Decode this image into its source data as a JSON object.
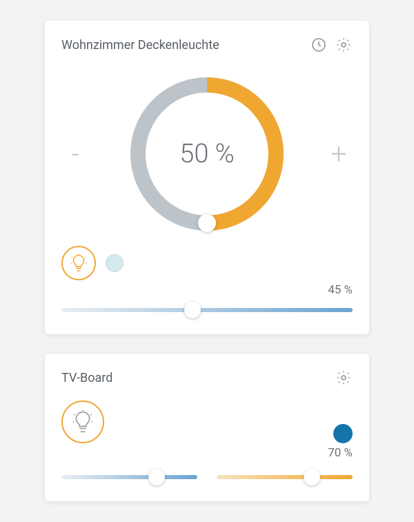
{
  "page": {
    "background_color": "#f2f3f4"
  },
  "card1": {
    "title": "Wohnzimmer Deckenleuchte",
    "dial": {
      "percent": 50,
      "label": "50 %",
      "track_color": "#bcc3c9",
      "fill_color": "#f0a732",
      "stroke_width": 22,
      "radius": 100,
      "handle_color": "#ffffff"
    },
    "minus_label": "-",
    "plus_label": "+",
    "mode": {
      "bulb_border": "#f0a732",
      "color_dot": "#d4e9ec"
    },
    "slider": {
      "percent": 45,
      "label": "45 %",
      "gradient": [
        "#e9eef3",
        "#6aa3d0"
      ]
    }
  },
  "card2": {
    "title": "TV-Board",
    "mode": {
      "bulb_border": "#f0a732"
    },
    "color_circle": "#1575a8",
    "slider_label": "70 %",
    "left_slider": {
      "percent": 70,
      "gradient": [
        "#e9eef3",
        "#6aa3d0"
      ]
    },
    "right_slider": {
      "percent": 70,
      "gradient": [
        "#f6e3bd",
        "#f0a732"
      ]
    }
  }
}
